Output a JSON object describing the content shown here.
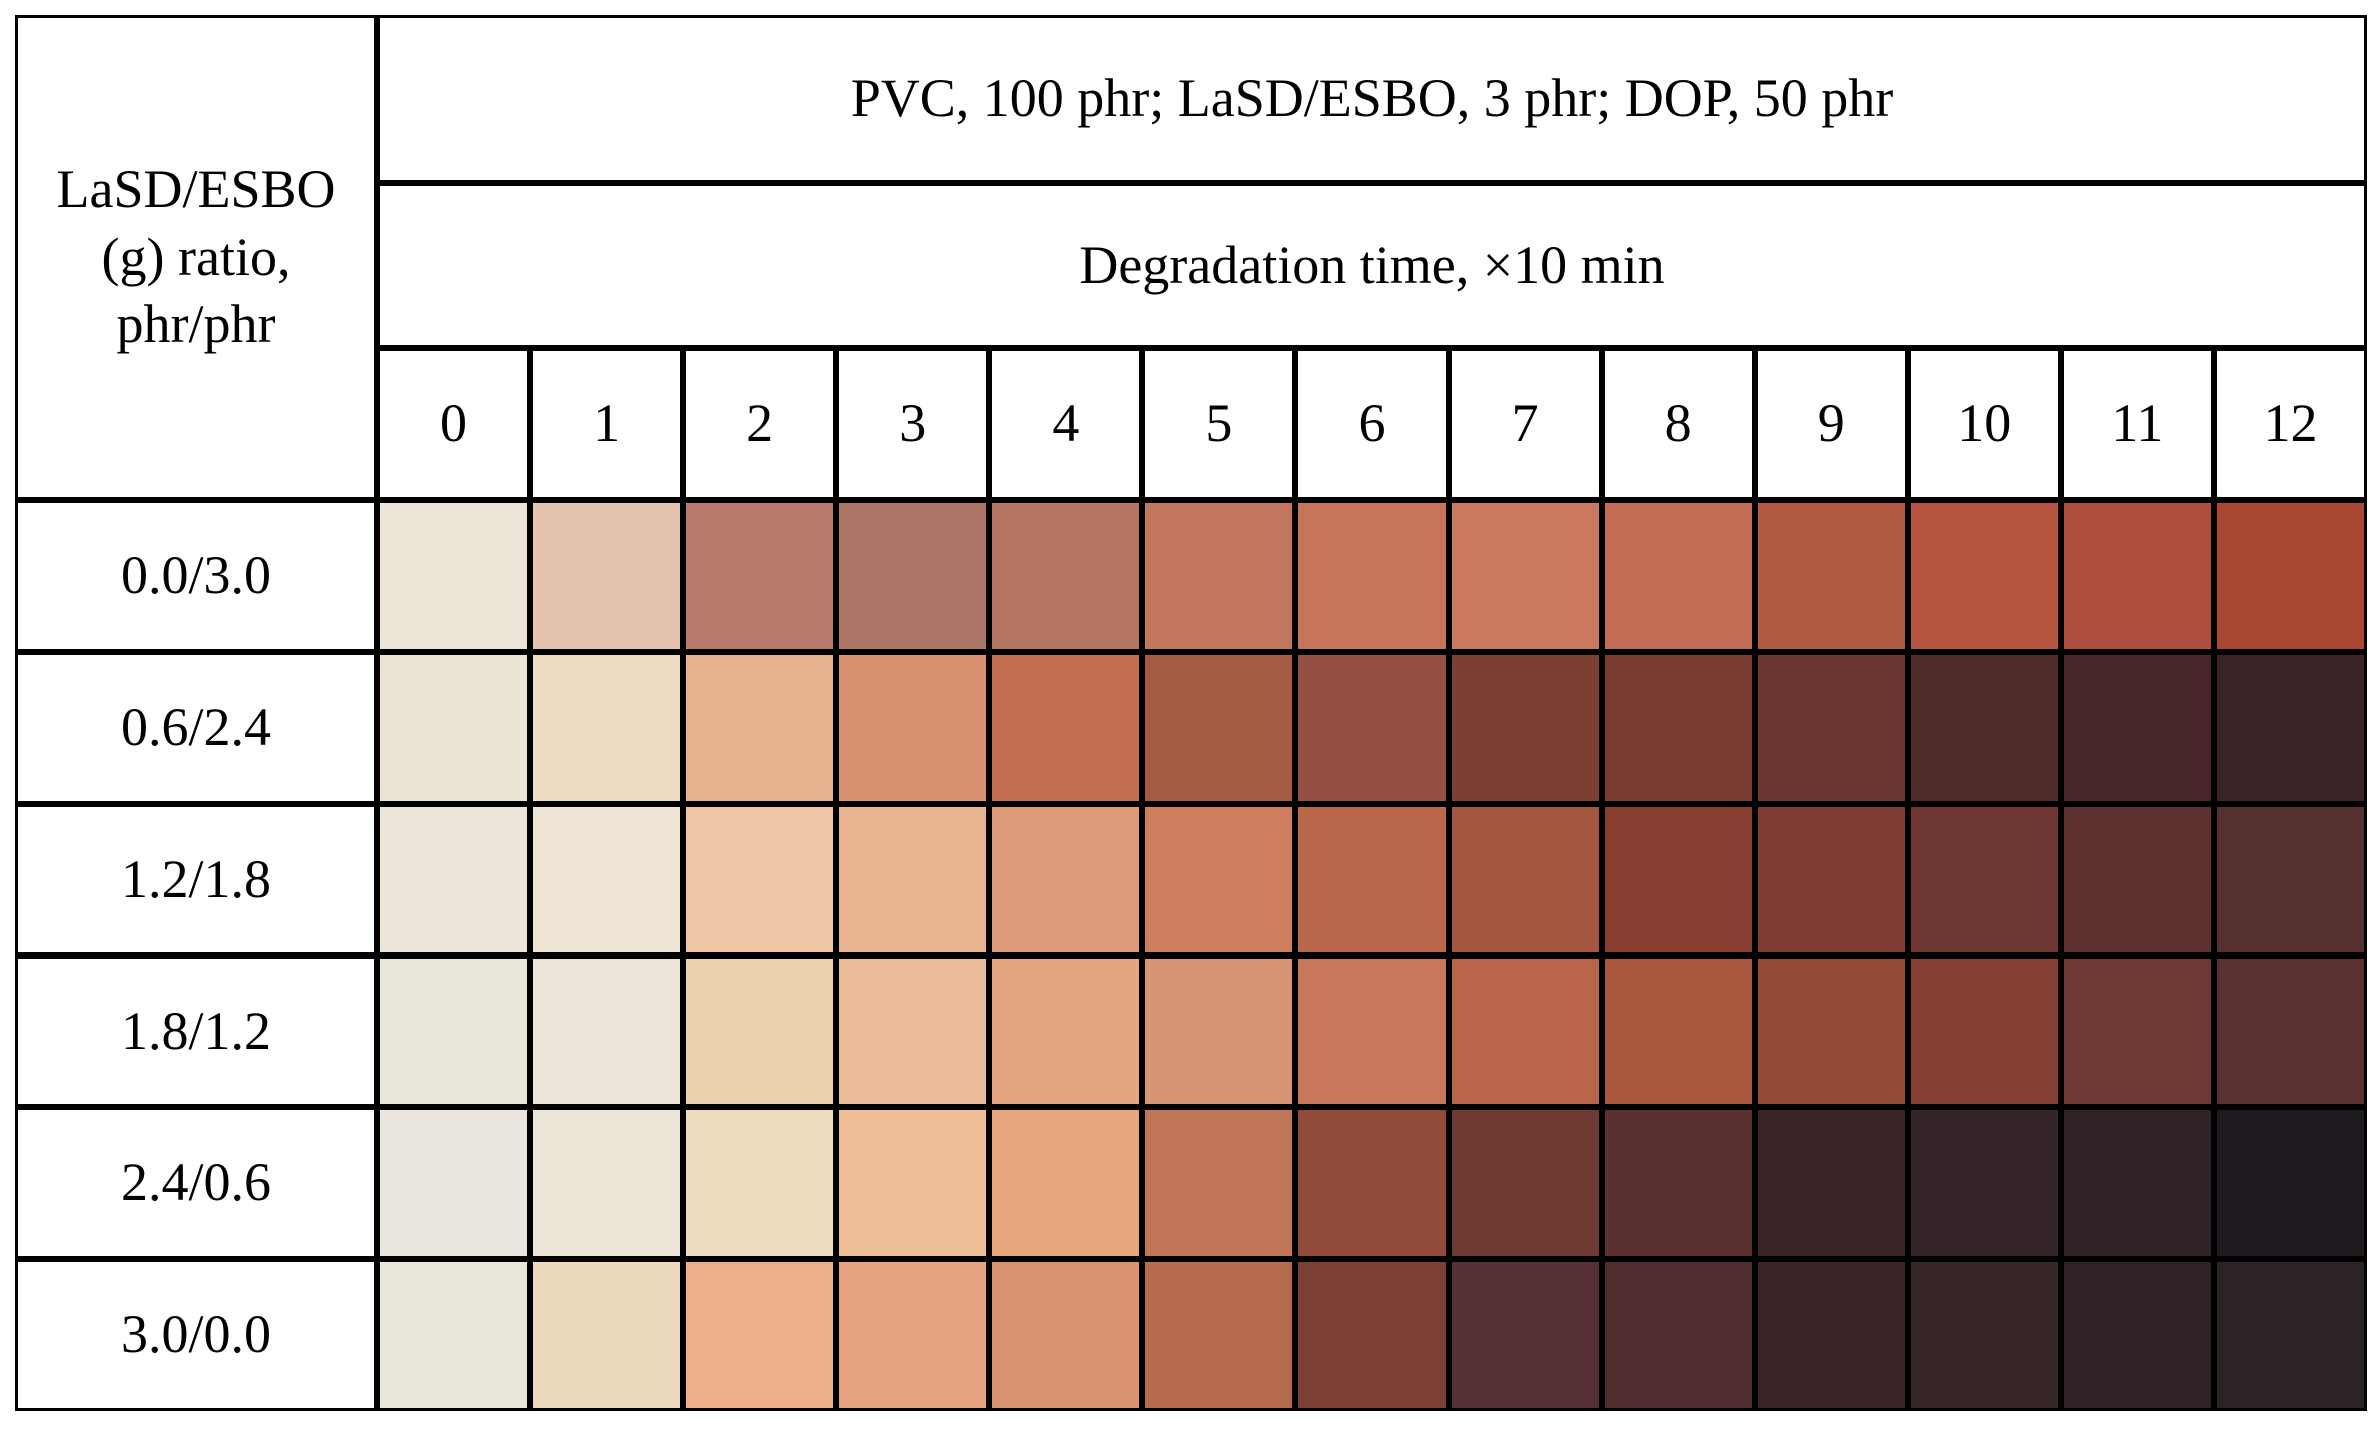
{
  "table": {
    "corner": "LaSD/ESBO (g) ratio, phr/phr",
    "header_formulation": "PVC, 100 phr; LaSD/ESBO, 3 phr; DOP, 50 phr",
    "header_time": "Degradation time, ×10 min",
    "times": [
      "0",
      "1",
      "2",
      "3",
      "4",
      "5",
      "6",
      "7",
      "8",
      "9",
      "10",
      "11",
      "12"
    ],
    "rows": [
      {
        "label": "0.0/3.0",
        "colors": [
          "#ece5d8",
          "#e6c3b0",
          "#b67a6c",
          "#ad7468",
          "#b57563",
          "#c2765e",
          "#c6755a",
          "#c97a5e",
          "#c36e54",
          "#b35a44",
          "#b5553f",
          "#ad4f3c",
          "#a84733"
        ]
      },
      {
        "label": "0.6/2.4",
        "colors": [
          "#ebe3d4",
          "#eddcc3",
          "#e7b08f",
          "#d99270",
          "#c27050",
          "#a55a42",
          "#945040",
          "#7d3f34",
          "#7a3c32",
          "#6c3530",
          "#4e2a2a",
          "#47272a",
          "#3a2326"
        ]
      },
      {
        "label": "1.2/1.8",
        "colors": [
          "#ece6da",
          "#ede4d3",
          "#efc7a6",
          "#e8b391",
          "#dc9a79",
          "#cd7f5e",
          "#b8674b",
          "#a55640",
          "#883f31",
          "#7e3c33",
          "#6d3630",
          "#5e3230",
          "#563030"
        ]
      },
      {
        "label": "1.8/1.2",
        "colors": [
          "#ebe6dc",
          "#ebe5d9",
          "#ecd3b0",
          "#ebbc9a",
          "#e4a581",
          "#d89473",
          "#c9775a",
          "#b86549",
          "#a9583f",
          "#954a38",
          "#853f35",
          "#6e3833",
          "#5b3231"
        ]
      },
      {
        "label": "2.4/0.6",
        "colors": [
          "#ebe6dd",
          "#ebe5d8",
          "#eddcc0",
          "#eebe97",
          "#e8a67f",
          "#c27658",
          "#8f4a3a",
          "#6e3a32",
          "#5a3030",
          "#3a2326",
          "#35232a",
          "#2f2228",
          "#1f1a20"
        ]
      },
      {
        "label": "3.0/0.0",
        "colors": [
          "#ebe6dc",
          "#ecd8bd",
          "#ebb08a",
          "#e7a47e",
          "#dc9470",
          "#b66a4f",
          "#7c4034",
          "#563032",
          "#4f2d2e",
          "#3a2428",
          "#372628",
          "#2e2226",
          "#2b2327"
        ]
      }
    ]
  }
}
